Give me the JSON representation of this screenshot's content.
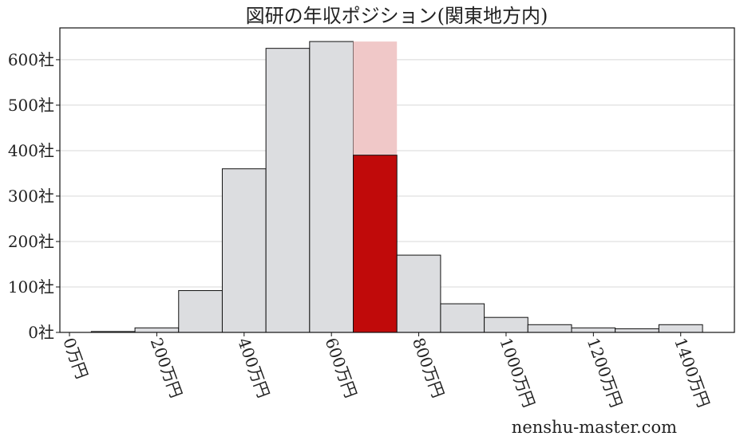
{
  "chart_data": {
    "type": "bar",
    "title": "図研の年収ポジション(関東地方内)",
    "xlabel": "",
    "ylabel": "",
    "bin_edges": [
      50,
      150,
      250,
      350,
      450,
      550,
      650,
      750,
      850,
      950,
      1050,
      1150,
      1250,
      1350,
      1450
    ],
    "values": [
      2,
      10,
      92,
      360,
      625,
      640,
      390,
      170,
      63,
      33,
      17,
      10,
      8,
      17
    ],
    "highlight": {
      "bin_index": 6,
      "value": 390,
      "background_value": 640
    },
    "xlim": [
      -22,
      1523
    ],
    "ylim": [
      0,
      670
    ],
    "x_ticks": [
      0,
      200,
      400,
      600,
      800,
      1000,
      1200,
      1400
    ],
    "x_tick_labels": [
      "0万円",
      "200万円",
      "400万円",
      "600万円",
      "800万円",
      "1000万円",
      "1200万円",
      "1400万円"
    ],
    "y_ticks": [
      0,
      100,
      200,
      300,
      400,
      500,
      600
    ],
    "y_tick_labels": [
      "0社",
      "100社",
      "200社",
      "300社",
      "400社",
      "500社",
      "600社"
    ],
    "grid": "horizontal",
    "colors": {
      "bar": "#dcdde0",
      "highlight": "#c00a0a",
      "highlight_background": "#f0c8c8",
      "edge": "#111111",
      "grid": "#d8d8d8"
    }
  },
  "watermark": "nenshu-master.com"
}
